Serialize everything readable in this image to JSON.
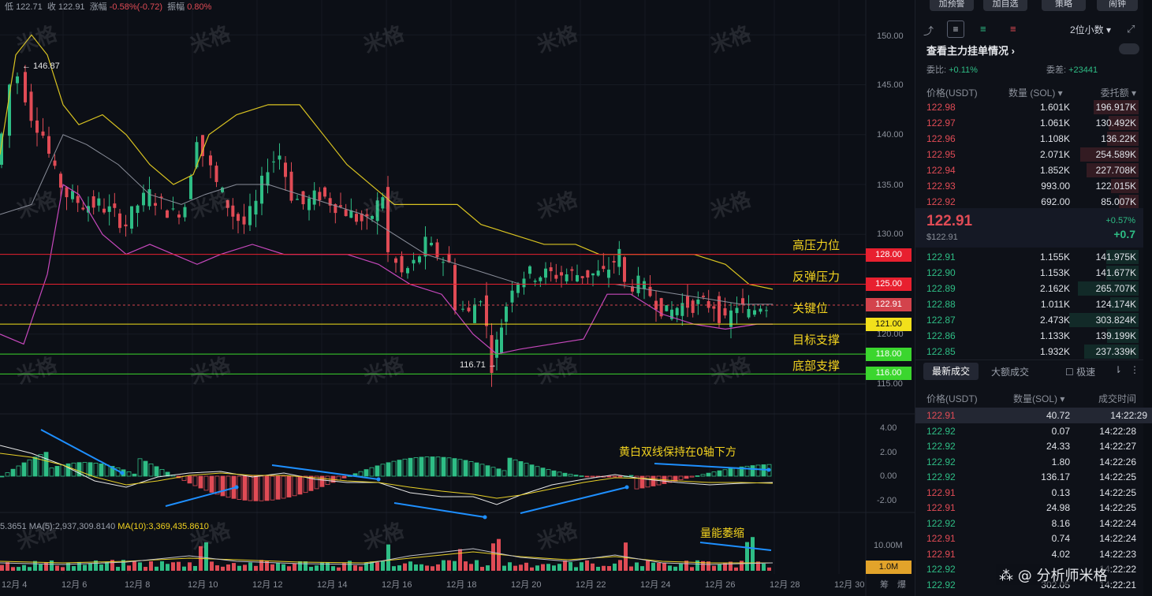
{
  "ohlc_bar": {
    "low_label": "低",
    "low": "122.71",
    "close_label": "收",
    "close": "122.91",
    "change_label": "涨幅",
    "change": "-0.58%(-0.72)",
    "amp_label": "振幅",
    "amp": "0.80%"
  },
  "levels": [
    {
      "label": "高压力位",
      "price": "128.00",
      "color": "#e8202f"
    },
    {
      "label": "反弹压力",
      "price": "125.00",
      "color": "#e8202f"
    },
    {
      "label": "关键位",
      "price": "122.91",
      "color": "#d3434c"
    },
    {
      "label": "目标支撑",
      "price": "121.00",
      "color": "#f2e01b"
    },
    {
      "label": "底部支撑",
      "price": "118.00",
      "color": "#3bd62e"
    },
    {
      "label": "",
      "price": "116.00",
      "color": "#3bd62e"
    }
  ],
  "price_axis": [
    "150.00",
    "145.00",
    "140.00",
    "135.00",
    "130.00",
    "125.00",
    "120.00",
    "115.00"
  ],
  "macd_axis": [
    "4.00",
    "2.00",
    "0.00",
    "-2.00"
  ],
  "vol_axis": [
    "10.00M",
    "1.0M"
  ],
  "dates": [
    "12月 4",
    "12月 6",
    "12月 8",
    "12月 10",
    "12月 12",
    "12月 14",
    "12月 16",
    "12月 18",
    "12月 20",
    "12月 22",
    "12月 24",
    "12月 26",
    "12月 28",
    "12月 30"
  ],
  "markers": {
    "high": "← 146.87",
    "low": "116.71 →"
  },
  "annotations": {
    "macd": "黄白双线保持在0轴下方",
    "volume": "量能萎缩"
  },
  "ma_text": {
    "prefix": "5.3651",
    "ma5": "MA(5):2,937,309.8140",
    "ma10": "MA(10):3,369,435.8610"
  },
  "watermark": "米格",
  "bottom_right": [
    "筹",
    "爆"
  ],
  "credit": "分析师米格",
  "sidebar": {
    "top_buttons": [
      "加预警",
      "加自选",
      "策略",
      "闹钟"
    ],
    "decimal": "2位小数",
    "title": "查看主力挂单情况",
    "ratio_label": "委比:",
    "ratio": "+0.11%",
    "diff_label": "委差:",
    "diff": "+23441",
    "headers": [
      "价格(USDT)",
      "数量 (SOL)",
      "委托额"
    ],
    "asks": [
      {
        "p": "122.98",
        "q": "1.601K",
        "t": "196.917K"
      },
      {
        "p": "122.97",
        "q": "1.061K",
        "t": "130.492K"
      },
      {
        "p": "122.96",
        "q": "1.108K",
        "t": "136.22K"
      },
      {
        "p": "122.95",
        "q": "2.071K",
        "t": "254.589K"
      },
      {
        "p": "122.94",
        "q": "1.852K",
        "t": "227.708K"
      },
      {
        "p": "122.93",
        "q": "993.00",
        "t": "122.015K"
      },
      {
        "p": "122.92",
        "q": "692.00",
        "t": "85.007K"
      }
    ],
    "last": "122.91",
    "last_usd": "$122.91",
    "chg_pct": "+0.57%",
    "chg": "+0.7",
    "bids": [
      {
        "p": "122.91",
        "q": "1.155K",
        "t": "141.975K"
      },
      {
        "p": "122.90",
        "q": "1.153K",
        "t": "141.677K"
      },
      {
        "p": "122.89",
        "q": "2.162K",
        "t": "265.707K"
      },
      {
        "p": "122.88",
        "q": "1.011K",
        "t": "124.174K"
      },
      {
        "p": "122.87",
        "q": "2.473K",
        "t": "303.824K"
      },
      {
        "p": "122.86",
        "q": "1.133K",
        "t": "139.199K"
      },
      {
        "p": "122.85",
        "q": "1.932K",
        "t": "237.339K"
      }
    ],
    "tabs": [
      "最新成交",
      "大额成交",
      "极速"
    ],
    "trade_headers": [
      "价格(USDT)",
      "数量(SOL)",
      "成交时间"
    ],
    "trades": [
      {
        "p": "122.91",
        "q": "40.72",
        "t": "14:22:29",
        "s": "red"
      },
      {
        "p": "122.92",
        "q": "0.07",
        "t": "14:22:28",
        "s": "green"
      },
      {
        "p": "122.92",
        "q": "24.33",
        "t": "14:22:27",
        "s": "green"
      },
      {
        "p": "122.92",
        "q": "1.80",
        "t": "14:22:26",
        "s": "green"
      },
      {
        "p": "122.92",
        "q": "136.17",
        "t": "14:22:25",
        "s": "green"
      },
      {
        "p": "122.91",
        "q": "0.13",
        "t": "14:22:25",
        "s": "red"
      },
      {
        "p": "122.91",
        "q": "24.98",
        "t": "14:22:25",
        "s": "red"
      },
      {
        "p": "122.92",
        "q": "8.16",
        "t": "14:22:24",
        "s": "green"
      },
      {
        "p": "122.91",
        "q": "0.74",
        "t": "14:22:24",
        "s": "red"
      },
      {
        "p": "122.91",
        "q": "4.02",
        "t": "14:22:23",
        "s": "red"
      },
      {
        "p": "122.92",
        "q": "",
        "t": "14:22:22",
        "s": "green"
      },
      {
        "p": "122.92",
        "q": "302.05",
        "t": "14:22:21",
        "s": "green"
      }
    ]
  }
}
